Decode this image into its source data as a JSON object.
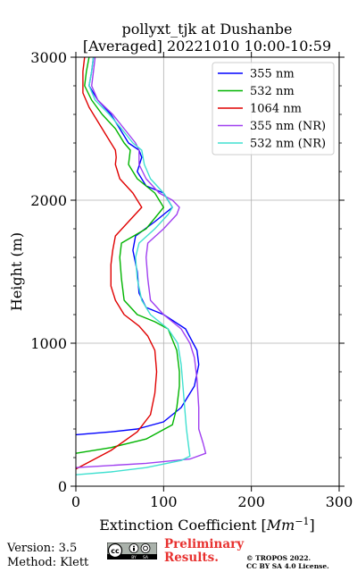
{
  "chart_data": {
    "type": "line",
    "title": "pollyxt_tjk at Dushanbe",
    "subtitle": "[Averaged] 20221010 10:00-10:59",
    "xlabel": "Extinction Coefficient [Mm⁻¹]",
    "ylabel": "Height (m)",
    "xlim": [
      0,
      300
    ],
    "ylim": [
      0,
      3000
    ],
    "x_ticks": [
      "0",
      "100",
      "200",
      "300"
    ],
    "y_ticks": [
      "0",
      "1000",
      "2000",
      "3000"
    ],
    "grid": true,
    "legend_position": "top-right",
    "series": [
      {
        "name": "355 nm",
        "color": "#0000ff",
        "points": [
          [
            0,
            360
          ],
          [
            40,
            380
          ],
          [
            70,
            400
          ],
          [
            100,
            450
          ],
          [
            120,
            550
          ],
          [
            135,
            700
          ],
          [
            140,
            850
          ],
          [
            138,
            950
          ],
          [
            125,
            1100
          ],
          [
            100,
            1200
          ],
          [
            80,
            1250
          ],
          [
            72,
            1350
          ],
          [
            70,
            1500
          ],
          [
            65,
            1650
          ],
          [
            68,
            1750
          ],
          [
            90,
            1850
          ],
          [
            110,
            1950
          ],
          [
            100,
            2050
          ],
          [
            80,
            2100
          ],
          [
            70,
            2200
          ],
          [
            75,
            2300
          ],
          [
            72,
            2350
          ],
          [
            60,
            2400
          ],
          [
            50,
            2500
          ],
          [
            40,
            2600
          ],
          [
            25,
            2700
          ],
          [
            15,
            2800
          ],
          [
            18,
            2900
          ],
          [
            20,
            3000
          ]
        ]
      },
      {
        "name": "532 nm",
        "color": "#00b400",
        "points": [
          [
            0,
            230
          ],
          [
            40,
            270
          ],
          [
            80,
            330
          ],
          [
            110,
            430
          ],
          [
            115,
            550
          ],
          [
            118,
            700
          ],
          [
            118,
            800
          ],
          [
            115,
            950
          ],
          [
            105,
            1100
          ],
          [
            90,
            1150
          ],
          [
            70,
            1200
          ],
          [
            55,
            1300
          ],
          [
            52,
            1450
          ],
          [
            50,
            1600
          ],
          [
            52,
            1700
          ],
          [
            80,
            1800
          ],
          [
            100,
            1950
          ],
          [
            90,
            2050
          ],
          [
            70,
            2150
          ],
          [
            60,
            2250
          ],
          [
            62,
            2350
          ],
          [
            55,
            2400
          ],
          [
            45,
            2500
          ],
          [
            30,
            2600
          ],
          [
            18,
            2700
          ],
          [
            10,
            2800
          ],
          [
            12,
            2900
          ],
          [
            15,
            3000
          ]
        ]
      },
      {
        "name": "1064 nm",
        "color": "#e00000",
        "points": [
          [
            0,
            120
          ],
          [
            40,
            250
          ],
          [
            70,
            380
          ],
          [
            85,
            500
          ],
          [
            90,
            650
          ],
          [
            92,
            800
          ],
          [
            90,
            950
          ],
          [
            82,
            1050
          ],
          [
            72,
            1120
          ],
          [
            55,
            1200
          ],
          [
            45,
            1300
          ],
          [
            40,
            1400
          ],
          [
            40,
            1550
          ],
          [
            42,
            1650
          ],
          [
            45,
            1750
          ],
          [
            60,
            1850
          ],
          [
            75,
            1950
          ],
          [
            65,
            2050
          ],
          [
            50,
            2150
          ],
          [
            45,
            2250
          ],
          [
            46,
            2300
          ],
          [
            45,
            2350
          ],
          [
            35,
            2450
          ],
          [
            25,
            2550
          ],
          [
            15,
            2650
          ],
          [
            8,
            2750
          ],
          [
            8,
            2900
          ],
          [
            10,
            3000
          ]
        ]
      },
      {
        "name": "355 nm (NR)",
        "color": "#a040f0",
        "points": [
          [
            0,
            130
          ],
          [
            80,
            160
          ],
          [
            130,
            190
          ],
          [
            148,
            230
          ],
          [
            145,
            300
          ],
          [
            140,
            400
          ],
          [
            140,
            550
          ],
          [
            138,
            750
          ],
          [
            135,
            900
          ],
          [
            130,
            1000
          ],
          [
            120,
            1100
          ],
          [
            100,
            1200
          ],
          [
            85,
            1300
          ],
          [
            82,
            1450
          ],
          [
            80,
            1600
          ],
          [
            82,
            1700
          ],
          [
            100,
            1800
          ],
          [
            115,
            1900
          ],
          [
            118,
            1950
          ],
          [
            110,
            2000
          ],
          [
            95,
            2050
          ],
          [
            80,
            2150
          ],
          [
            72,
            2250
          ],
          [
            72,
            2350
          ],
          [
            68,
            2400
          ],
          [
            55,
            2500
          ],
          [
            42,
            2600
          ],
          [
            25,
            2700
          ],
          [
            18,
            2800
          ],
          [
            20,
            2900
          ],
          [
            22,
            3000
          ]
        ]
      },
      {
        "name": "532 nm (NR)",
        "color": "#40e0d0",
        "points": [
          [
            0,
            80
          ],
          [
            40,
            100
          ],
          [
            80,
            130
          ],
          [
            120,
            180
          ],
          [
            130,
            210
          ],
          [
            128,
            300
          ],
          [
            126,
            400
          ],
          [
            124,
            550
          ],
          [
            122,
            700
          ],
          [
            120,
            850
          ],
          [
            116,
            1000
          ],
          [
            105,
            1100
          ],
          [
            85,
            1200
          ],
          [
            75,
            1300
          ],
          [
            70,
            1450
          ],
          [
            68,
            1600
          ],
          [
            72,
            1700
          ],
          [
            90,
            1800
          ],
          [
            105,
            1900
          ],
          [
            110,
            1950
          ],
          [
            100,
            2050
          ],
          [
            85,
            2150
          ],
          [
            78,
            2250
          ],
          [
            75,
            2350
          ],
          [
            65,
            2400
          ],
          [
            52,
            2500
          ],
          [
            38,
            2600
          ],
          [
            22,
            2700
          ],
          [
            15,
            2800
          ],
          [
            18,
            2900
          ],
          [
            20,
            3000
          ]
        ]
      }
    ]
  },
  "footer": {
    "version": "Version: 3.5",
    "method": "Method: Klett",
    "preliminary_line1": "Preliminary",
    "preliminary_line2": "Results.",
    "copyright_line1": "© TROPOS 2022.",
    "copyright_line2": "CC BY SA 4.0 License."
  }
}
